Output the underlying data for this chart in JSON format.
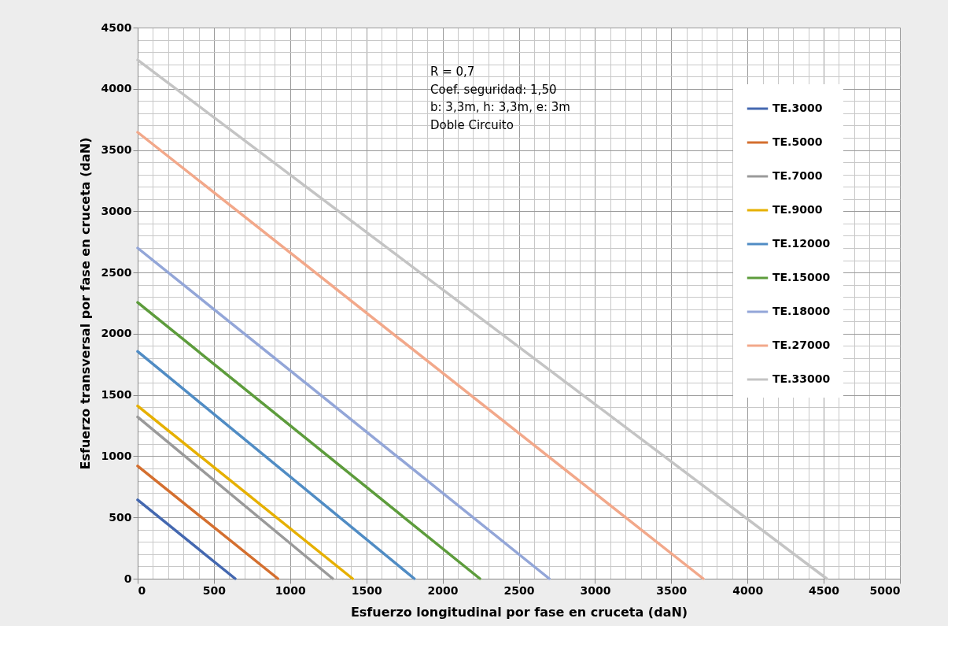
{
  "chart_data": {
    "type": "line",
    "xlabel": "Esfuerzo longitudinal por fase en cruceta (daN)",
    "ylabel": "Esfuerzo transversal por fase en cruceta (daN)",
    "annotations": [
      "R = 0,7",
      "Coef. seguridad: 1,50",
      "b: 3,3m, h: 3,3m, e: 3m",
      "Doble Circuito"
    ],
    "series": [
      {
        "name": "TE.3000",
        "color": "#4468b0",
        "x": [
          0,
          640
        ],
        "values": [
          644,
          0
        ]
      },
      {
        "name": "TE.5000",
        "color": "#d46f2f",
        "x": [
          0,
          920
        ],
        "values": [
          920,
          0
        ]
      },
      {
        "name": "TE.7000",
        "color": "#9a9a9a",
        "x": [
          0,
          1280
        ],
        "values": [
          1320,
          0
        ]
      },
      {
        "name": "TE.9000",
        "color": "#e6b000",
        "x": [
          0,
          1410
        ],
        "values": [
          1410,
          0
        ]
      },
      {
        "name": "TE.12000",
        "color": "#508cc4",
        "x": [
          0,
          1815
        ],
        "values": [
          1855,
          0
        ]
      },
      {
        "name": "TE.15000",
        "color": "#5d9c3c",
        "x": [
          0,
          2245
        ],
        "values": [
          2255,
          0
        ]
      },
      {
        "name": "TE.18000",
        "color": "#93a6d8",
        "x": [
          0,
          2700
        ],
        "values": [
          2700,
          0
        ]
      },
      {
        "name": "TE.27000",
        "color": "#f2a88a",
        "x": [
          0,
          3710
        ],
        "values": [
          3645,
          0
        ]
      },
      {
        "name": "TE.33000",
        "color": "#c4c4c4",
        "x": [
          0,
          4520
        ],
        "values": [
          4235,
          0
        ]
      }
    ],
    "xlim": [
      0,
      5000
    ],
    "xticks": [
      0,
      {
        "value": 100,
        "label": null
      },
      {
        "value": 200,
        "label": null
      },
      {
        "value": 300,
        "label": null
      },
      {
        "value": 400,
        "label": null
      },
      500,
      {
        "value": 600,
        "label": null
      },
      {
        "value": 700,
        "label": null
      },
      {
        "value": 800,
        "label": null
      },
      {
        "value": 900,
        "label": null
      },
      1000,
      {
        "value": 1100,
        "label": null
      },
      {
        "value": 1200,
        "label": null
      },
      {
        "value": 1300,
        "label": null
      },
      {
        "value": 1400,
        "label": null
      },
      1500,
      {
        "value": 1600,
        "label": null
      },
      {
        "value": 1700,
        "label": null
      },
      {
        "value": 1800,
        "label": null
      },
      {
        "value": 1900,
        "label": null
      },
      2000,
      {
        "value": 2100,
        "label": null
      },
      {
        "value": 2200,
        "label": null
      },
      {
        "value": 2300,
        "label": null
      },
      {
        "value": 2400,
        "label": null
      },
      2500,
      {
        "value": 2600,
        "label": null
      },
      {
        "value": 2700,
        "label": null
      },
      {
        "value": 2800,
        "label": null
      },
      {
        "value": 2900,
        "label": null
      },
      3000,
      {
        "value": 3100,
        "label": null
      },
      {
        "value": 3200,
        "label": null
      },
      {
        "value": 3300,
        "label": null
      },
      {
        "value": 3400,
        "label": null
      },
      3500,
      {
        "value": 3600,
        "label": null
      },
      {
        "value": 3700,
        "label": null
      },
      {
        "value": 3800,
        "label": null
      },
      {
        "value": 3900,
        "label": null
      },
      4000,
      {
        "value": 4100,
        "label": null
      },
      {
        "value": 4200,
        "label": null
      },
      {
        "value": 4300,
        "label": null
      },
      {
        "value": 4400,
        "label": null
      },
      4500,
      {
        "value": 4600,
        "label": null
      },
      {
        "value": 4700,
        "label": null
      },
      {
        "value": 4800,
        "label": null
      },
      {
        "value": 4900,
        "label": null
      },
      5000
    ],
    "ylim": [
      0,
      4500
    ],
    "yticks": [
      0,
      {
        "value": 100,
        "label": null
      },
      {
        "value": 200,
        "label": null
      },
      {
        "value": 300,
        "label": null
      },
      {
        "value": 400,
        "label": null
      },
      500,
      {
        "value": 600,
        "label": null
      },
      {
        "value": 700,
        "label": null
      },
      {
        "value": 800,
        "label": null
      },
      {
        "value": 900,
        "label": null
      },
      1000,
      {
        "value": 1100,
        "label": null
      },
      {
        "value": 1200,
        "label": null
      },
      {
        "value": 1300,
        "label": null
      },
      {
        "value": 1400,
        "label": null
      },
      1500,
      {
        "value": 1600,
        "label": null
      },
      {
        "value": 1700,
        "label": null
      },
      {
        "value": 1800,
        "label": null
      },
      {
        "value": 1900,
        "label": null
      },
      2000,
      {
        "value": 2100,
        "label": null
      },
      {
        "value": 2200,
        "label": null
      },
      {
        "value": 2300,
        "label": null
      },
      {
        "value": 2400,
        "label": null
      },
      2500,
      {
        "value": 2600,
        "label": null
      },
      {
        "value": 2700,
        "label": null
      },
      {
        "value": 2800,
        "label": null
      },
      {
        "value": 2900,
        "label": null
      },
      3000,
      {
        "value": 3100,
        "label": null
      },
      {
        "value": 3200,
        "label": null
      },
      {
        "value": 3300,
        "label": null
      },
      {
        "value": 3400,
        "label": null
      },
      3500,
      {
        "value": 3600,
        "label": null
      },
      {
        "value": 3700,
        "label": null
      },
      {
        "value": 3800,
        "label": null
      },
      {
        "value": 3900,
        "label": null
      },
      4000,
      {
        "value": 4100,
        "label": null
      },
      {
        "value": 4200,
        "label": null
      },
      {
        "value": 4300,
        "label": null
      },
      {
        "value": 4400,
        "label": null
      },
      4500
    ],
    "grid": true,
    "legend": "top right",
    "line_style": "solid"
  }
}
